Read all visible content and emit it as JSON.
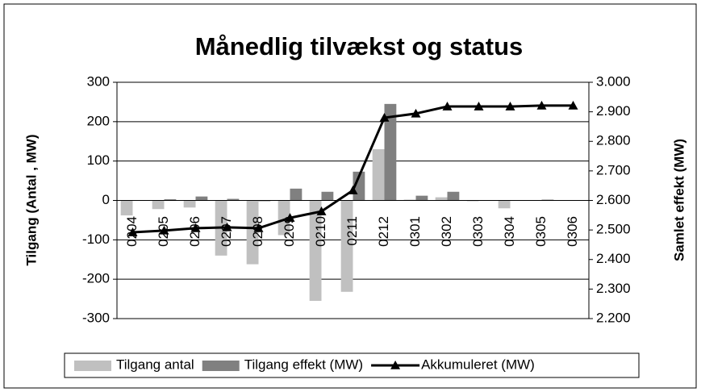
{
  "chart_data": {
    "type": "combo",
    "title": "Månedlig tilvækst og status",
    "y_label": "Tilgang (Antal , MW)",
    "y2_label": "Samlet effekt (MW)",
    "categories": [
      "0204",
      "0205",
      "0206",
      "0207",
      "0208",
      "0209",
      "0210",
      "0211",
      "0212",
      "0301",
      "0302",
      "0303",
      "0304",
      "0305",
      "0306"
    ],
    "series": [
      {
        "name": "Tilgang antal",
        "type": "bar",
        "color": "#c0c0c0",
        "values": [
          -38,
          -22,
          -18,
          -140,
          -162,
          -88,
          -255,
          -232,
          130,
          2,
          8,
          -2,
          -20,
          0,
          0
        ]
      },
      {
        "name": "Tilgang effekt (MW)",
        "type": "bar",
        "color": "#808080",
        "values": [
          1,
          3,
          10,
          4,
          -2,
          30,
          22,
          73,
          245,
          12,
          22,
          0,
          0,
          2,
          0
        ]
      },
      {
        "name": "Akkumuleret (MW)",
        "type": "line",
        "axis": "y2",
        "color": "#000000",
        "values": [
          2492,
          2498,
          2506,
          2509,
          2506,
          2541,
          2563,
          2634,
          2880,
          2894,
          2918,
          2918,
          2918,
          2921,
          2921
        ]
      }
    ],
    "ylim": [
      -300,
      300
    ],
    "yticks": [
      -300,
      -200,
      -100,
      0,
      100,
      200,
      300
    ],
    "y2lim": [
      2200,
      3000
    ],
    "y2ticks": [
      {
        "value": 2200,
        "label": "2.200"
      },
      {
        "value": 2300,
        "label": "2.300"
      },
      {
        "value": 2400,
        "label": "2.400"
      },
      {
        "value": 2500,
        "label": "2.500"
      },
      {
        "value": 2600,
        "label": "2.600"
      },
      {
        "value": 2700,
        "label": "2.700"
      },
      {
        "value": 2800,
        "label": "2.800"
      },
      {
        "value": 2900,
        "label": "2.900"
      },
      {
        "value": 3000,
        "label": "3.000"
      }
    ],
    "grid": true,
    "legend": "bottom"
  }
}
